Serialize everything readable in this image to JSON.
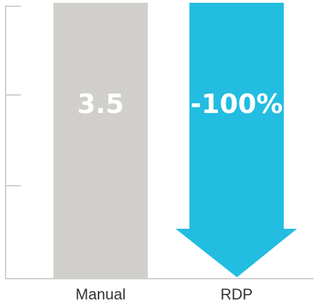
{
  "chart_data": {
    "type": "bar",
    "categories": [
      "Manual",
      "RDP"
    ],
    "series": [
      {
        "values": [
          3.5,
          0
        ]
      }
    ],
    "data_labels": [
      "3.5",
      "-100%"
    ],
    "title": "",
    "xlabel": "",
    "ylabel": "",
    "ylim": [
      0,
      3.5
    ],
    "grid": false,
    "colors": {
      "manual_bar": "#d1cfcc",
      "rdp_arrow": "#22bde0",
      "axis": "#cfcfcf"
    },
    "rdp_mark": "down-arrow"
  }
}
